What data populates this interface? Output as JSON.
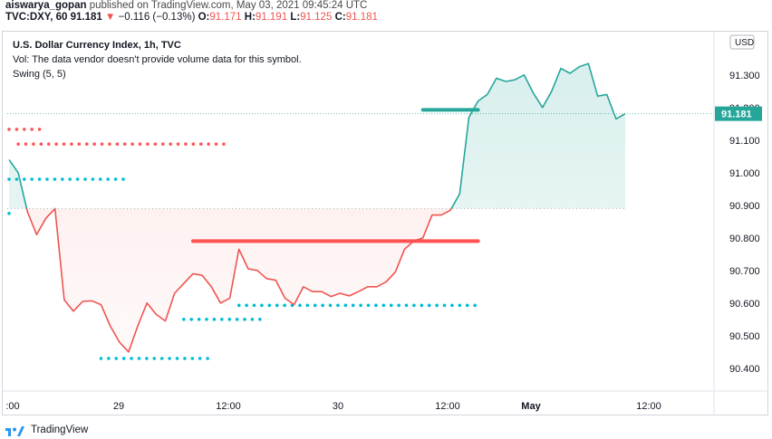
{
  "header": {
    "user": "aiswarya_gopan",
    "published": "published on TradingView.com, May 03, 2021 09:45:24 UTC"
  },
  "quote": {
    "symbol": "TVC:DXY, 60",
    "last": "91.181",
    "arrow": "▼",
    "change": "−0.116 (−0.13%)",
    "open_label": "O:",
    "open": "91.171",
    "high_label": "H:",
    "high": "91.191",
    "low_label": "L:",
    "low": "91.125",
    "close_label": "C:",
    "close": "91.181"
  },
  "legend": {
    "title": "U.S. Dollar Currency Index, 1h, TVC",
    "vol": "Vol: The data vendor doesn't provide volume data for this symbol.",
    "indicator": "Swing (5, 5)"
  },
  "footer": {
    "brand": "TradingView"
  },
  "colors": {
    "up": "#26a69a",
    "down": "#ef5350",
    "swing_low": "#00bcd4",
    "swing_high": "#ff5252",
    "current_level": "#26a69a",
    "price_tag": "#26a69a"
  },
  "chart_data": {
    "type": "line",
    "currency": "USD",
    "current_price": 91.181,
    "current_price_label": "91.181",
    "y_ticks": [
      "91.300",
      "91.200",
      "91.100",
      "91.000",
      "90.900",
      "90.800",
      "90.700",
      "90.600",
      "90.500",
      "90.400"
    ],
    "y_tick_values": [
      91.3,
      91.2,
      91.1,
      91.0,
      90.9,
      90.8,
      90.7,
      90.6,
      90.5,
      90.4
    ],
    "x_ticks": [
      ":00",
      "29",
      "12:00",
      "30",
      "12:00",
      "May",
      "12:00"
    ],
    "ylim": [
      90.33,
      91.43
    ],
    "baseline": 90.89,
    "series": [
      {
        "values": [
          91.04,
          91.0,
          90.88,
          90.81,
          90.86,
          90.89,
          90.61,
          90.575,
          90.605,
          90.607,
          90.595,
          90.53,
          90.48,
          90.45,
          90.53,
          90.6,
          90.565,
          90.545,
          90.63,
          90.66,
          90.69,
          90.685,
          90.65,
          90.6,
          90.615,
          90.765,
          90.705,
          90.7,
          90.675,
          90.67,
          90.615,
          90.595,
          90.65,
          90.635,
          90.635,
          90.62,
          90.63,
          90.622,
          90.635,
          90.65,
          90.65,
          90.665,
          90.695,
          90.765,
          90.79,
          90.8,
          90.87,
          90.87,
          90.885,
          90.935,
          91.17,
          91.22,
          91.24,
          91.29,
          91.28,
          91.285,
          91.3,
          91.245,
          91.2,
          91.25,
          91.32,
          91.305,
          91.325,
          91.335,
          91.235,
          91.24,
          91.165,
          91.181
        ]
      }
    ],
    "swing_levels": [
      {
        "kind": "high",
        "value": 91.133,
        "from": 0,
        "to": 4
      },
      {
        "kind": "high",
        "value": 91.088,
        "from": 1,
        "to": 24
      },
      {
        "kind": "low",
        "value": 90.98,
        "from": 0,
        "to": 13
      },
      {
        "kind": "low",
        "value": 90.875,
        "from": 0,
        "to": 0
      },
      {
        "kind": "low",
        "value": 90.43,
        "from": 10,
        "to": 22
      },
      {
        "kind": "low",
        "value": 90.55,
        "from": 19,
        "to": 28
      },
      {
        "kind": "low",
        "value": 90.593,
        "from": 25,
        "to": 51
      }
    ],
    "resistance_line": {
      "value": 90.79,
      "from": 20,
      "to": 51
    },
    "current_level_line": {
      "value": 91.193,
      "from": 45,
      "to": 51
    }
  }
}
